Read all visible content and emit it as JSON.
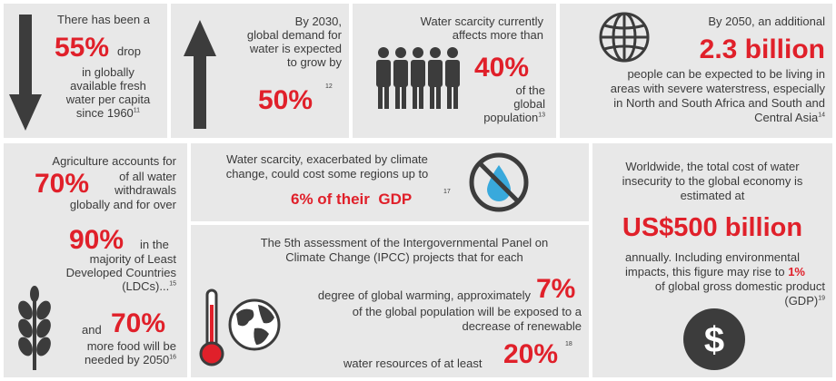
{
  "colors": {
    "accent": "#e0202a",
    "panel": "#e8e8e8",
    "text": "#3a3a3a",
    "icon": "#3c3c3c",
    "drop": "#39a9dc"
  },
  "p1": {
    "pre": "There has been a",
    "stat": "55%",
    "post1": "drop",
    "post2": "in globally",
    "post3": "available fresh",
    "post4": "water per capita",
    "post5": "since 1960",
    "ref": "11",
    "icon": "down-arrow-icon"
  },
  "p2": {
    "l1": "By 2030,",
    "l2": "global demand for",
    "l3": "water is expected",
    "l4": "to grow by",
    "stat": "50%",
    "ref": "12",
    "icon": "up-arrow-icon"
  },
  "p3": {
    "l1": "Water scarcity currently",
    "l2": "affects more than",
    "stat": "40%",
    "l3": "of the",
    "l4": "global",
    "l5": "population",
    "ref": "13",
    "icon": "people-icon"
  },
  "p4": {
    "l1": "By 2050, an additional",
    "stat": "2.3 billion",
    "l2": "people can be expected to be living in",
    "l3": "areas with severe waterstress, especially",
    "l4": "in North and South Africa and South and",
    "l5": "Central Asia",
    "ref": "14",
    "icon": "globe-icon"
  },
  "p5": {
    "l1": "Agriculture accounts for",
    "stat1": "70%",
    "l2": "of all water",
    "l3": "withdrawals",
    "l4": "globally and for over",
    "stat2": "90%",
    "l5": "in the",
    "l6": "majority of Least",
    "l7": "Developed Countries",
    "l8": "(LDCs)...",
    "ref1": "15",
    "l9": "and",
    "stat3": "70%",
    "l10": "more food will be",
    "l11": "needed by 2050",
    "ref2": "16",
    "icon": "wheat-icon"
  },
  "p6": {
    "l1": "Water scarcity, exacerbated by climate",
    "l2": "change, could cost some regions up to",
    "stat": "6% of their  GDP",
    "ref": "17",
    "icon": "no-water-icon"
  },
  "p7": {
    "l1": "The 5th assessment of the Intergovernmental Panel on",
    "l2": "Climate Change (IPCC) projects that for each",
    "l3": "degree of global warming, approximately",
    "stat1": "7%",
    "l4": "of the global population will be exposed to a",
    "l5": "decrease of renewable",
    "l6": "water resources of at least",
    "stat2": "20%",
    "ref": "18",
    "icon1": "thermometer-icon",
    "icon2": "earth-icon"
  },
  "p8": {
    "l1": "Worldwide, the total cost of water",
    "l2": "insecurity to the global economy is",
    "l3": "estimated at",
    "stat1": "US$500 billion",
    "l4": "annually. Including environmental",
    "l5": "impacts, this figure may rise to",
    "stat2": "1%",
    "l6": "of global gross domestic product",
    "l7": "(GDP)",
    "ref": "19",
    "icon": "dollar-icon"
  }
}
